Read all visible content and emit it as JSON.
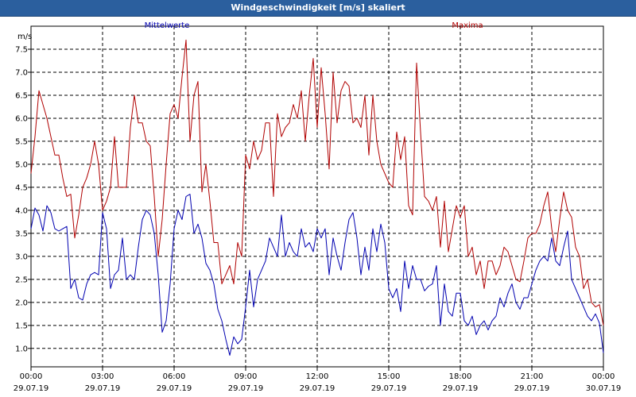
{
  "window": {
    "title": "Windgeschwindigkeit [m/s] skaliert"
  },
  "colors": {
    "title_bar": "#2b5f9e",
    "mittelwerte": "#0000b0",
    "maxima": "#b00000"
  },
  "chart_data": {
    "type": "line",
    "title": "Windgeschwindigkeit [m/s] skaliert",
    "ylabel": "m/s",
    "xlabel": "",
    "grid": true,
    "legend_placement": "top",
    "ylim": [
      0.6,
      8.0
    ],
    "xlim": [
      "29.07.19 00:00",
      "30.07.19 00:00"
    ],
    "y_ticks": [
      "1.0",
      "1.5",
      "2.0",
      "2.5",
      "3.0",
      "3.5",
      "4.0",
      "4.5",
      "5.0",
      "5.5",
      "6.0",
      "6.5",
      "7.0",
      "7.5"
    ],
    "x_ticks": [
      {
        "time": "00:00",
        "date": "29.07.19"
      },
      {
        "time": "03:00",
        "date": "29.07.19"
      },
      {
        "time": "06:00",
        "date": "29.07.19"
      },
      {
        "time": "09:00",
        "date": "29.07.19"
      },
      {
        "time": "12:00",
        "date": "29.07.19"
      },
      {
        "time": "15:00",
        "date": "29.07.19"
      },
      {
        "time": "18:00",
        "date": "29.07.19"
      },
      {
        "time": "21:00",
        "date": "29.07.19"
      },
      {
        "time": "00:00",
        "date": "30.07.19"
      }
    ],
    "series": [
      {
        "name": "Mittelwerte",
        "color": "#0000b0",
        "points": [
          [
            "00:00",
            3.6
          ],
          [
            "00:10",
            4.05
          ],
          [
            "00:20",
            3.9
          ],
          [
            "00:30",
            3.55
          ],
          [
            "00:40",
            4.1
          ],
          [
            "00:50",
            3.95
          ],
          [
            "01:00",
            3.6
          ],
          [
            "01:10",
            3.55
          ],
          [
            "01:20",
            3.6
          ],
          [
            "01:30",
            3.65
          ],
          [
            "01:40",
            2.3
          ],
          [
            "01:50",
            2.5
          ],
          [
            "02:00",
            2.1
          ],
          [
            "02:10",
            2.05
          ],
          [
            "02:20",
            2.4
          ],
          [
            "02:30",
            2.6
          ],
          [
            "02:40",
            2.65
          ],
          [
            "02:50",
            2.6
          ],
          [
            "03:00",
            3.95
          ],
          [
            "03:10",
            3.6
          ],
          [
            "03:20",
            2.3
          ],
          [
            "03:30",
            2.6
          ],
          [
            "03:40",
            2.7
          ],
          [
            "03:50",
            3.4
          ],
          [
            "04:00",
            2.5
          ],
          [
            "04:10",
            2.6
          ],
          [
            "04:20",
            2.5
          ],
          [
            "04:30",
            3.2
          ],
          [
            "04:40",
            3.8
          ],
          [
            "04:50",
            4.0
          ],
          [
            "05:00",
            3.9
          ],
          [
            "05:10",
            3.5
          ],
          [
            "05:20",
            2.6
          ],
          [
            "05:30",
            1.35
          ],
          [
            "05:40",
            1.6
          ],
          [
            "05:50",
            2.4
          ],
          [
            "06:00",
            3.6
          ],
          [
            "06:10",
            4.0
          ],
          [
            "06:20",
            3.8
          ],
          [
            "06:30",
            4.3
          ],
          [
            "06:40",
            4.35
          ],
          [
            "06:50",
            3.5
          ],
          [
            "07:00",
            3.7
          ],
          [
            "07:10",
            3.4
          ],
          [
            "07:20",
            2.85
          ],
          [
            "07:30",
            2.7
          ],
          [
            "07:40",
            2.4
          ],
          [
            "07:50",
            1.85
          ],
          [
            "08:00",
            1.6
          ],
          [
            "08:10",
            1.2
          ],
          [
            "08:20",
            0.85
          ],
          [
            "08:30",
            1.25
          ],
          [
            "08:40",
            1.1
          ],
          [
            "08:50",
            1.2
          ],
          [
            "09:00",
            1.9
          ],
          [
            "09:10",
            2.7
          ],
          [
            "09:20",
            1.9
          ],
          [
            "09:30",
            2.5
          ],
          [
            "09:40",
            2.7
          ],
          [
            "09:50",
            2.9
          ],
          [
            "10:00",
            3.4
          ],
          [
            "10:10",
            3.2
          ],
          [
            "10:20",
            3.0
          ],
          [
            "10:30",
            3.9
          ],
          [
            "10:40",
            3.0
          ],
          [
            "10:50",
            3.3
          ],
          [
            "11:00",
            3.1
          ],
          [
            "11:10",
            3.0
          ],
          [
            "11:20",
            3.6
          ],
          [
            "11:30",
            3.2
          ],
          [
            "11:40",
            3.3
          ],
          [
            "11:50",
            3.1
          ],
          [
            "12:00",
            3.6
          ],
          [
            "12:10",
            3.4
          ],
          [
            "12:20",
            3.6
          ],
          [
            "12:30",
            2.6
          ],
          [
            "12:40",
            3.4
          ],
          [
            "12:50",
            3.0
          ],
          [
            "13:00",
            2.7
          ],
          [
            "13:10",
            3.3
          ],
          [
            "13:20",
            3.8
          ],
          [
            "13:30",
            3.95
          ],
          [
            "13:40",
            3.4
          ],
          [
            "13:50",
            2.6
          ],
          [
            "14:00",
            3.2
          ],
          [
            "14:10",
            2.7
          ],
          [
            "14:20",
            3.6
          ],
          [
            "14:30",
            3.1
          ],
          [
            "14:40",
            3.7
          ],
          [
            "14:50",
            3.3
          ],
          [
            "15:00",
            2.3
          ],
          [
            "15:10",
            2.1
          ],
          [
            "15:20",
            2.3
          ],
          [
            "15:30",
            1.8
          ],
          [
            "15:40",
            2.9
          ],
          [
            "15:50",
            2.3
          ],
          [
            "16:00",
            2.8
          ],
          [
            "16:10",
            2.5
          ],
          [
            "16:20",
            2.5
          ],
          [
            "16:30",
            2.25
          ],
          [
            "16:40",
            2.35
          ],
          [
            "16:50",
            2.4
          ],
          [
            "17:00",
            2.8
          ],
          [
            "17:10",
            1.5
          ],
          [
            "17:20",
            2.4
          ],
          [
            "17:30",
            1.8
          ],
          [
            "17:40",
            1.7
          ],
          [
            "17:50",
            2.2
          ],
          [
            "18:00",
            2.2
          ],
          [
            "18:10",
            1.6
          ],
          [
            "18:20",
            1.5
          ],
          [
            "18:30",
            1.7
          ],
          [
            "18:40",
            1.3
          ],
          [
            "18:50",
            1.5
          ],
          [
            "19:00",
            1.6
          ],
          [
            "19:10",
            1.4
          ],
          [
            "19:20",
            1.6
          ],
          [
            "19:30",
            1.7
          ],
          [
            "19:40",
            2.1
          ],
          [
            "19:50",
            1.9
          ],
          [
            "20:00",
            2.2
          ],
          [
            "20:10",
            2.4
          ],
          [
            "20:20",
            2.0
          ],
          [
            "20:30",
            1.85
          ],
          [
            "20:40",
            2.1
          ],
          [
            "20:50",
            2.1
          ],
          [
            "21:00",
            2.4
          ],
          [
            "21:10",
            2.7
          ],
          [
            "21:20",
            2.9
          ],
          [
            "21:30",
            3.0
          ],
          [
            "21:40",
            2.9
          ],
          [
            "21:50",
            3.4
          ],
          [
            "22:00",
            2.9
          ],
          [
            "22:10",
            2.8
          ],
          [
            "22:20",
            3.2
          ],
          [
            "22:30",
            3.55
          ],
          [
            "22:40",
            2.5
          ],
          [
            "22:50",
            2.3
          ],
          [
            "23:00",
            2.1
          ],
          [
            "23:10",
            1.9
          ],
          [
            "23:20",
            1.7
          ],
          [
            "23:30",
            1.6
          ],
          [
            "23:40",
            1.75
          ],
          [
            "23:50",
            1.55
          ],
          [
            "24:00",
            0.9
          ]
        ]
      },
      {
        "name": "Maxima",
        "color": "#b00000",
        "points": [
          [
            "00:00",
            4.8
          ],
          [
            "00:10",
            5.6
          ],
          [
            "00:20",
            6.6
          ],
          [
            "00:30",
            6.3
          ],
          [
            "00:40",
            6.0
          ],
          [
            "00:50",
            5.6
          ],
          [
            "01:00",
            5.2
          ],
          [
            "01:10",
            5.2
          ],
          [
            "01:20",
            4.7
          ],
          [
            "01:30",
            4.3
          ],
          [
            "01:40",
            4.35
          ],
          [
            "01:50",
            3.4
          ],
          [
            "02:00",
            3.9
          ],
          [
            "02:10",
            4.5
          ],
          [
            "02:20",
            4.7
          ],
          [
            "02:30",
            5.0
          ],
          [
            "02:40",
            5.5
          ],
          [
            "02:50",
            5.0
          ],
          [
            "03:00",
            4.0
          ],
          [
            "03:10",
            4.2
          ],
          [
            "03:20",
            4.5
          ],
          [
            "03:30",
            5.6
          ],
          [
            "03:40",
            4.5
          ],
          [
            "03:50",
            4.5
          ],
          [
            "04:00",
            4.5
          ],
          [
            "04:10",
            5.8
          ],
          [
            "04:20",
            6.5
          ],
          [
            "04:30",
            5.9
          ],
          [
            "04:40",
            5.9
          ],
          [
            "04:50",
            5.5
          ],
          [
            "05:00",
            5.4
          ],
          [
            "05:10",
            4.3
          ],
          [
            "05:20",
            3.0
          ],
          [
            "05:30",
            3.8
          ],
          [
            "05:40",
            5.0
          ],
          [
            "05:50",
            6.1
          ],
          [
            "06:00",
            6.3
          ],
          [
            "06:10",
            6.0
          ],
          [
            "06:20",
            6.9
          ],
          [
            "06:30",
            7.7
          ],
          [
            "06:40",
            5.5
          ],
          [
            "06:50",
            6.5
          ],
          [
            "07:00",
            6.8
          ],
          [
            "07:10",
            4.4
          ],
          [
            "07:20",
            5.0
          ],
          [
            "07:30",
            4.2
          ],
          [
            "07:40",
            3.3
          ],
          [
            "07:50",
            3.3
          ],
          [
            "08:00",
            2.4
          ],
          [
            "08:10",
            2.6
          ],
          [
            "08:20",
            2.8
          ],
          [
            "08:30",
            2.4
          ],
          [
            "08:40",
            3.3
          ],
          [
            "08:50",
            3.0
          ],
          [
            "09:00",
            5.2
          ],
          [
            "09:10",
            4.9
          ],
          [
            "09:20",
            5.5
          ],
          [
            "09:30",
            5.1
          ],
          [
            "09:40",
            5.3
          ],
          [
            "09:50",
            5.9
          ],
          [
            "10:00",
            5.9
          ],
          [
            "10:10",
            4.3
          ],
          [
            "10:20",
            6.1
          ],
          [
            "10:30",
            5.6
          ],
          [
            "10:40",
            5.8
          ],
          [
            "10:50",
            5.9
          ],
          [
            "11:00",
            6.3
          ],
          [
            "11:10",
            6.0
          ],
          [
            "11:20",
            6.6
          ],
          [
            "11:30",
            5.5
          ],
          [
            "11:40",
            6.5
          ],
          [
            "11:50",
            7.3
          ],
          [
            "12:00",
            5.8
          ],
          [
            "12:10",
            7.1
          ],
          [
            "12:20",
            6.1
          ],
          [
            "12:30",
            4.9
          ],
          [
            "12:40",
            7.0
          ],
          [
            "12:50",
            5.9
          ],
          [
            "13:00",
            6.6
          ],
          [
            "13:10",
            6.8
          ],
          [
            "13:20",
            6.7
          ],
          [
            "13:30",
            5.9
          ],
          [
            "13:40",
            6.0
          ],
          [
            "13:50",
            5.8
          ],
          [
            "14:00",
            6.5
          ],
          [
            "14:10",
            5.2
          ],
          [
            "14:20",
            6.5
          ],
          [
            "14:30",
            5.5
          ],
          [
            "14:40",
            5.0
          ],
          [
            "14:50",
            4.8
          ],
          [
            "15:00",
            4.6
          ],
          [
            "15:10",
            4.5
          ],
          [
            "15:20",
            5.7
          ],
          [
            "15:30",
            5.1
          ],
          [
            "15:40",
            5.6
          ],
          [
            "15:50",
            4.1
          ],
          [
            "16:00",
            3.9
          ],
          [
            "16:10",
            7.2
          ],
          [
            "16:20",
            5.7
          ],
          [
            "16:30",
            4.3
          ],
          [
            "16:40",
            4.2
          ],
          [
            "16:50",
            4.0
          ],
          [
            "17:00",
            4.3
          ],
          [
            "17:10",
            3.2
          ],
          [
            "17:20",
            4.2
          ],
          [
            "17:30",
            3.1
          ],
          [
            "17:40",
            3.6
          ],
          [
            "17:50",
            4.1
          ],
          [
            "18:00",
            3.85
          ],
          [
            "18:10",
            4.1
          ],
          [
            "18:20",
            3.0
          ],
          [
            "18:30",
            3.2
          ],
          [
            "18:40",
            2.6
          ],
          [
            "18:50",
            2.9
          ],
          [
            "19:00",
            2.3
          ],
          [
            "19:10",
            2.9
          ],
          [
            "19:20",
            2.9
          ],
          [
            "19:30",
            2.6
          ],
          [
            "19:40",
            2.8
          ],
          [
            "19:50",
            3.2
          ],
          [
            "20:00",
            3.1
          ],
          [
            "20:10",
            2.8
          ],
          [
            "20:20",
            2.5
          ],
          [
            "20:30",
            2.45
          ],
          [
            "20:40",
            2.9
          ],
          [
            "20:50",
            3.4
          ],
          [
            "21:00",
            3.5
          ],
          [
            "21:10",
            3.5
          ],
          [
            "21:20",
            3.7
          ],
          [
            "21:30",
            4.1
          ],
          [
            "21:40",
            4.4
          ],
          [
            "21:50",
            3.6
          ],
          [
            "22:00",
            3.1
          ],
          [
            "22:10",
            3.8
          ],
          [
            "22:20",
            4.4
          ],
          [
            "22:30",
            4.0
          ],
          [
            "22:40",
            3.85
          ],
          [
            "22:50",
            3.2
          ],
          [
            "23:00",
            3.0
          ],
          [
            "23:10",
            2.3
          ],
          [
            "23:20",
            2.5
          ],
          [
            "23:30",
            2.0
          ],
          [
            "23:40",
            1.9
          ],
          [
            "23:50",
            1.95
          ],
          [
            "24:00",
            1.5
          ]
        ]
      }
    ]
  }
}
